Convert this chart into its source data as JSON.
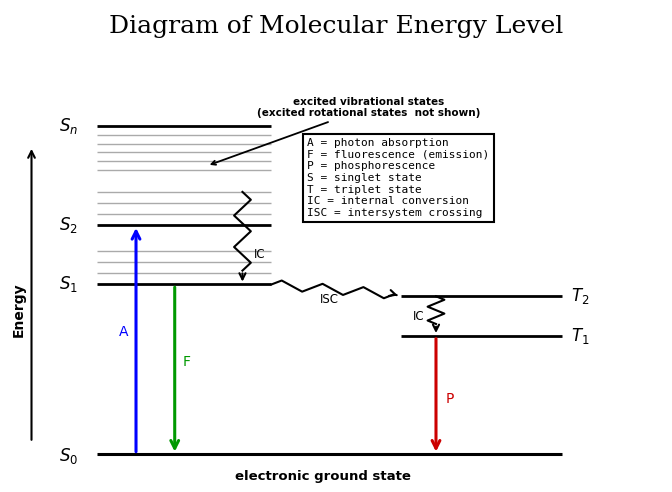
{
  "title": "Diagram of Molecular Energy Level",
  "title_fontsize": 18,
  "background_color": "#ffffff",
  "levels": {
    "S0": 0.5,
    "S1": 4.8,
    "S2": 6.3,
    "Sn": 8.8,
    "T1": 3.5,
    "T2": 4.5
  },
  "legend_text": "A = photon absorption\nF = fluorescence (emission)\nP = phosphorescence\nS = singlet state\nT = triplet state\nIC = internal conversion\nISC = intersystem crossing",
  "ground_state_label": "electronic ground state",
  "energy_label": "Energy",
  "colors": {
    "blue": "#0000ff",
    "green": "#009900",
    "red": "#cc0000",
    "black": "#000000",
    "gray": "#aaaaaa"
  }
}
